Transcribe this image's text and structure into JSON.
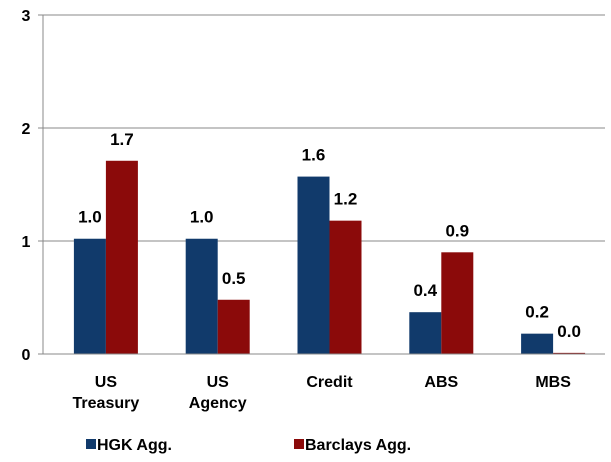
{
  "chart_data": {
    "type": "bar",
    "categories": [
      "US Treasury",
      "US Agency",
      "Credit",
      "ABS",
      "MBS"
    ],
    "series": [
      {
        "name": "HGK Agg.",
        "color": "#113a6b",
        "values": [
          1.02,
          1.02,
          1.57,
          0.37,
          0.18
        ],
        "value_labels": [
          "1.0",
          "1.0",
          "1.6",
          "0.4",
          "0.2"
        ]
      },
      {
        "name": "Barclays Agg.",
        "color": "#8b0a0a",
        "values": [
          1.71,
          0.48,
          1.18,
          0.9,
          0.01
        ],
        "value_labels": [
          "1.7",
          "0.5",
          "1.2",
          "0.9",
          "0.0"
        ]
      }
    ],
    "ylim": [
      0,
      3
    ],
    "yticks": [
      0,
      1,
      2,
      3
    ],
    "grid": true,
    "legend": "bottom"
  }
}
